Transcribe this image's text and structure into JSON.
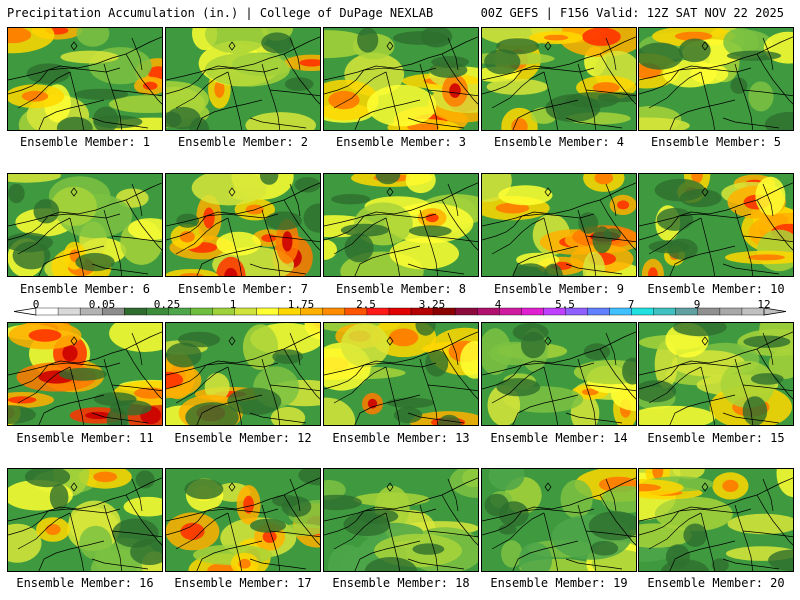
{
  "header": {
    "left": "Precipitation Accumulation (in.) | College of DuPage NEXLAB",
    "right": "00Z GEFS | F156 Valid: 12Z SAT NOV 22 2025"
  },
  "members": [
    {
      "label": "Ensemble Member: 1",
      "intensity": 0.45
    },
    {
      "label": "Ensemble Member: 2",
      "intensity": 0.45
    },
    {
      "label": "Ensemble Member: 3",
      "intensity": 0.55
    },
    {
      "label": "Ensemble Member: 4",
      "intensity": 0.55
    },
    {
      "label": "Ensemble Member: 5",
      "intensity": 0.3
    },
    {
      "label": "Ensemble Member: 6",
      "intensity": 0.25
    },
    {
      "label": "Ensemble Member: 7",
      "intensity": 0.7
    },
    {
      "label": "Ensemble Member: 8",
      "intensity": 0.35
    },
    {
      "label": "Ensemble Member: 9",
      "intensity": 0.6
    },
    {
      "label": "Ensemble Member: 10",
      "intensity": 0.5
    },
    {
      "label": "Ensemble Member: 11",
      "intensity": 0.8
    },
    {
      "label": "Ensemble Member: 12",
      "intensity": 0.4
    },
    {
      "label": "Ensemble Member: 13",
      "intensity": 0.55
    },
    {
      "label": "Ensemble Member: 14",
      "intensity": 0.3
    },
    {
      "label": "Ensemble Member: 15",
      "intensity": 0.4
    },
    {
      "label": "Ensemble Member: 16",
      "intensity": 0.3
    },
    {
      "label": "Ensemble Member: 17",
      "intensity": 0.45
    },
    {
      "label": "Ensemble Member: 18",
      "intensity": 0.25
    },
    {
      "label": "Ensemble Member: 19",
      "intensity": 0.2
    },
    {
      "label": "Ensemble Member: 20",
      "intensity": 0.3
    }
  ],
  "colorbar": {
    "labels": [
      "0",
      "0.05",
      "0.25",
      "1",
      "1.75",
      "2.5",
      "3.25",
      "4",
      "5.5",
      "7",
      "9",
      "12"
    ],
    "colors": [
      "#ffffff",
      "#d9d9d9",
      "#b3b3b3",
      "#8c8c8c",
      "#2f6b2f",
      "#3c8c3c",
      "#4ea64a",
      "#6fbf3f",
      "#9fd13a",
      "#cfe33a",
      "#ffff33",
      "#ffd700",
      "#ffb000",
      "#ff8c00",
      "#ff5500",
      "#ff1a1a",
      "#e00000",
      "#b40000",
      "#8a0000",
      "#8b0a3c",
      "#b0106e",
      "#d01aa0",
      "#e020d0",
      "#c040ff",
      "#9060ff",
      "#6080ff",
      "#40c0ff",
      "#20e0e0",
      "#40c0c0",
      "#60a0a0",
      "#909090",
      "#a8a8a8",
      "#c0c0c0"
    ]
  }
}
